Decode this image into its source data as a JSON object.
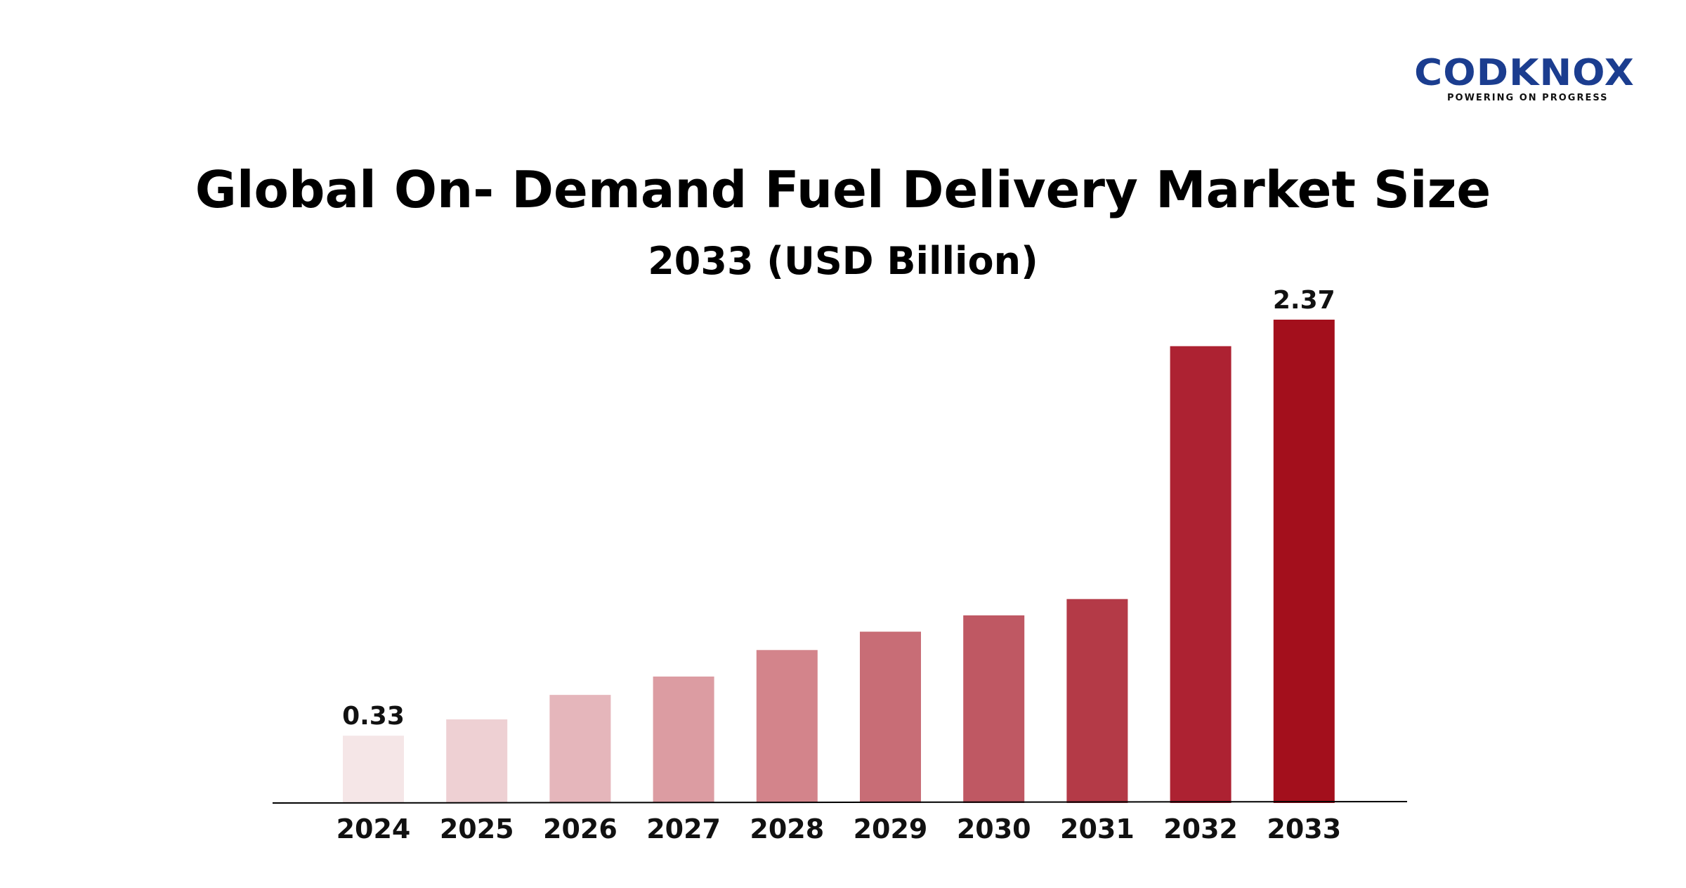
{
  "logo": {
    "wordmark": "CODKNOX",
    "tagline": "POWERING ON PROGRESS"
  },
  "chart_data": {
    "type": "bar",
    "title": "Global On- Demand Fuel Delivery Market Size",
    "subtitle": "2033 (USD Billion)",
    "xlabel": "",
    "ylabel": "",
    "categories": [
      "2024",
      "2025",
      "2026",
      "2027",
      "2028",
      "2029",
      "2030",
      "2031",
      "2032",
      "2033"
    ],
    "values": [
      0.33,
      0.41,
      0.53,
      0.62,
      0.75,
      0.84,
      0.92,
      1.0,
      2.24,
      2.37
    ],
    "data_labels": {
      "0": "0.33",
      "9": "2.37"
    },
    "colors": [
      "#f5e6e7",
      "#eed0d3",
      "#e5b6bb",
      "#dc9ca2",
      "#d3848b",
      "#c86d76",
      "#bf5863",
      "#b43a47",
      "#ad2232",
      "#a30f1c"
    ],
    "ylim": [
      0,
      2.37
    ],
    "grid": false,
    "legend": "none"
  }
}
